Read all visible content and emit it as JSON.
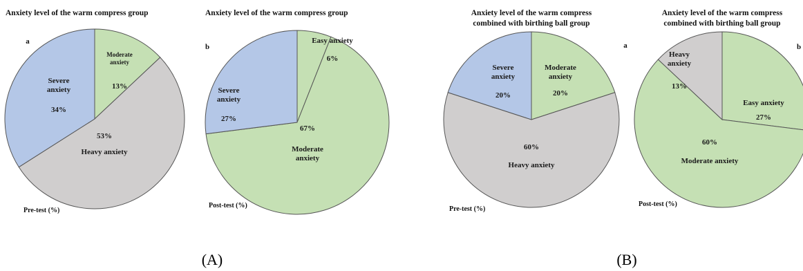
{
  "colors": {
    "Severe anxiety": "#b4c7e7",
    "Moderate anxiety": "#c5e0b4",
    "Heavy anxiety": "#d0cece",
    "Easy anxiety": "#c5e0b4",
    "stroke": "#555555"
  },
  "panel_labels": [
    "(A)",
    "(B)"
  ],
  "chart_data": [
    {
      "type": "pie",
      "title": "Anxiety level of the warm compress group",
      "letter": "a",
      "caption": "Pre-test (%)",
      "slices": [
        {
          "label": "Moderate anxiety",
          "value": 13,
          "label_lines": [
            "Moderate",
            "anxiety"
          ],
          "pct": "13%"
        },
        {
          "label": "Heavy anxiety",
          "value": 53,
          "label_lines": [
            "Heavy anxiety"
          ],
          "pct": "53%"
        },
        {
          "label": "Severe anxiety",
          "value": 34,
          "label_lines": [
            "Severe",
            "anxiety"
          ],
          "pct": "34%"
        }
      ]
    },
    {
      "type": "pie",
      "title": "Anxiety level of the warm compress group",
      "letter": "b",
      "caption": "Post-test (%)",
      "slices": [
        {
          "label": "Easy anxiety",
          "value": 6,
          "label_lines": [
            "Easy anxiety"
          ],
          "pct": "6%"
        },
        {
          "label": "Moderate anxiety",
          "value": 67,
          "label_lines": [
            "Moderate",
            "anxiety"
          ],
          "pct": "67%"
        },
        {
          "label": "Severe anxiety",
          "value": 27,
          "label_lines": [
            "Severe",
            "anxiety"
          ],
          "pct": "27%"
        }
      ]
    },
    {
      "type": "pie",
      "title": "Anxiety level of the warm compress combined with birthing ball group",
      "title_lines": [
        "Anxiety level of the warm compress",
        "combined with birthing ball group"
      ],
      "letter": "a",
      "caption": "Pre-test (%)",
      "slices": [
        {
          "label": "Moderate anxiety",
          "value": 20,
          "label_lines": [
            "Moderate",
            "anxiety"
          ],
          "pct": "20%"
        },
        {
          "label": "Heavy anxiety",
          "value": 60,
          "label_lines": [
            "Heavy anxiety"
          ],
          "pct": "60%"
        },
        {
          "label": "Severe anxiety",
          "value": 20,
          "label_lines": [
            "Severe",
            "anxiety"
          ],
          "pct": "20%"
        }
      ]
    },
    {
      "type": "pie",
      "title": "Anxiety level of the warm compress combined with birthing ball group",
      "title_lines": [
        "Anxiety level of the warm compress",
        "combined with birthing ball group"
      ],
      "letter": "b",
      "caption": "Post-test (%)",
      "slices": [
        {
          "label": "Easy anxiety",
          "value": 27,
          "label_lines": [
            "Easy anxiety"
          ],
          "pct": "27%"
        },
        {
          "label": "Moderate anxiety",
          "value": 60,
          "label_lines": [
            "Moderate anxiety"
          ],
          "pct": "60%"
        },
        {
          "label": "Heavy anxiety",
          "value": 13,
          "label_lines": [
            "Heavy",
            "anxiety"
          ],
          "pct": "13%"
        }
      ]
    }
  ]
}
